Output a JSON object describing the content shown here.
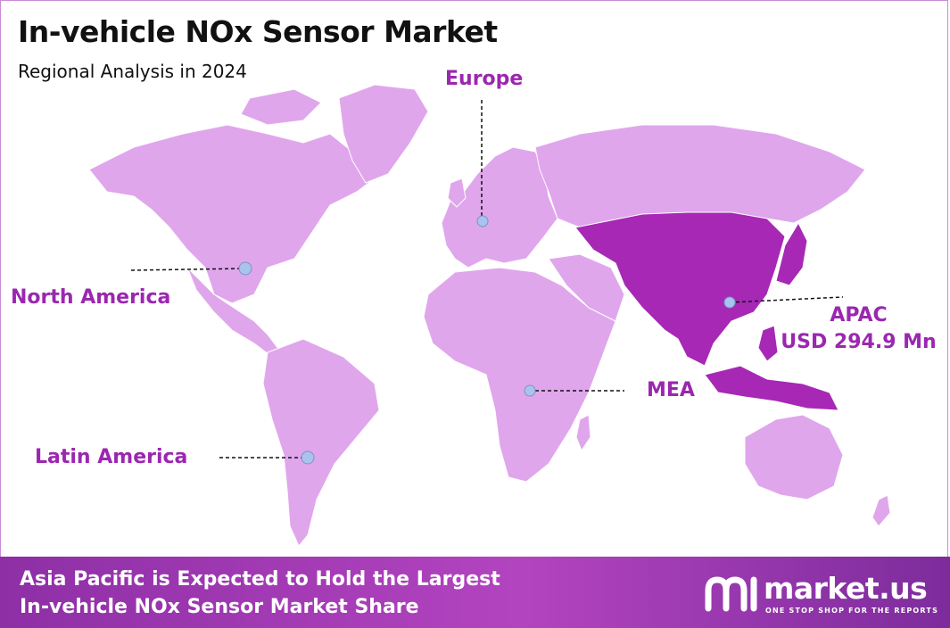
{
  "header": {
    "title": "In-vehicle NOx Sensor Market",
    "subtitle": "Regional Analysis in 2024"
  },
  "regions": [
    {
      "key": "europe",
      "label": "Europe"
    },
    {
      "key": "north_america",
      "label": "North America"
    },
    {
      "key": "apac",
      "label": "APAC",
      "value": "USD 294.9 Mn",
      "highlighted": true
    },
    {
      "key": "mea",
      "label": "MEA"
    },
    {
      "key": "latin_america",
      "label": "Latin America"
    }
  ],
  "footer": {
    "line1": "Asia Pacific is Expected to Hold the Largest",
    "line2": "In-vehicle NOx Sensor Market Share"
  },
  "logo": {
    "word": "market.us",
    "tagline": "ONE STOP SHOP FOR THE REPORTS"
  },
  "colors": {
    "land": "#e0a6ec",
    "highlight": "#a628b5",
    "label": "#9b27b0",
    "marker": "#a9c3ee",
    "footer": "#a23cb8"
  }
}
